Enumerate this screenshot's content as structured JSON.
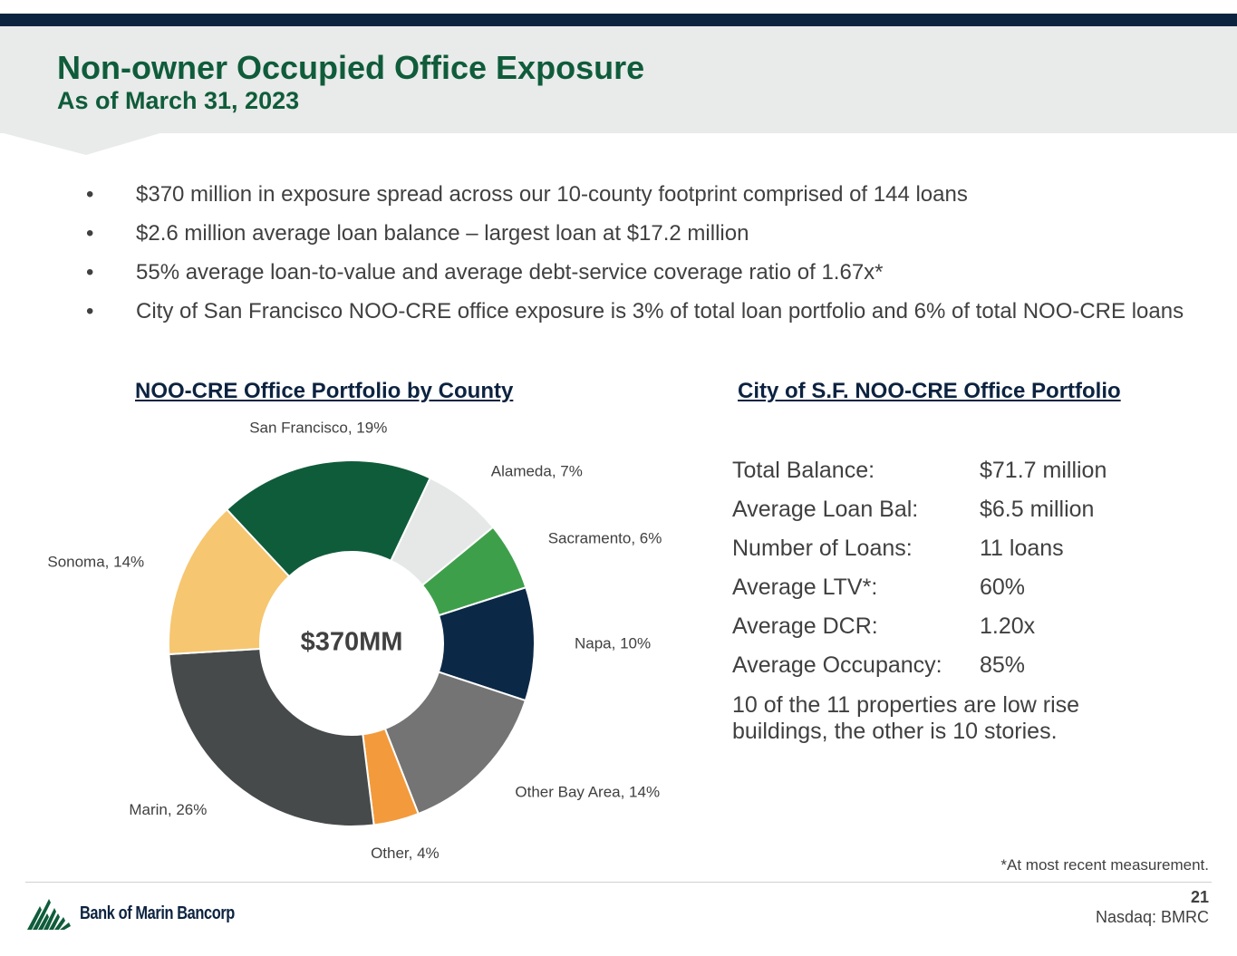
{
  "header": {
    "title": "Non-owner Occupied Office Exposure",
    "subtitle": "As of March 31, 2023"
  },
  "bullets": [
    "$370 million in exposure spread across our 10-county footprint comprised of 144 loans",
    "$2.6 million average loan balance – largest loan at $17.2 million",
    "55% average loan-to-value and average debt-service coverage ratio of 1.67x*",
    "City of San Francisco NOO-CRE office exposure is 3% of total loan portfolio and 6% of total NOO-CRE loans"
  ],
  "bullet_symbol": "•",
  "left_section": {
    "heading": "NOO-CRE Office Portfolio by County"
  },
  "right_section": {
    "heading": "City of S.F. NOO-CRE Office Portfolio",
    "stats": [
      {
        "label": "Total Balance:",
        "value": "$71.7 million"
      },
      {
        "label": "Average Loan Bal:",
        "value": "$6.5 million"
      },
      {
        "label": "Number of Loans:",
        "value": "11 loans"
      },
      {
        "label": "Average LTV*:",
        "value": "60%"
      },
      {
        "label": "Average DCR:",
        "value": "1.20x"
      },
      {
        "label": "Average Occupancy:",
        "value": "85%"
      }
    ],
    "note": "10 of the 11 properties are low rise buildings, the other is 10 stories."
  },
  "chart_data": {
    "type": "pie",
    "donut": true,
    "title": "NOO-CRE Office Portfolio by County",
    "center_label": "$370MM",
    "slices": [
      {
        "label": "San Francisco, 19%",
        "name": "San Francisco",
        "value": 19,
        "color": "#0f5c3a"
      },
      {
        "label": "Alameda, 7%",
        "name": "Alameda",
        "value": 7,
        "color": "#e6e8e7"
      },
      {
        "label": "Sacramento, 6%",
        "name": "Sacramento",
        "value": 6,
        "color": "#3e9f4b"
      },
      {
        "label": "Napa, 10%",
        "name": "Napa",
        "value": 10,
        "color": "#0c2847"
      },
      {
        "label": "Other Bay Area, 14%",
        "name": "Other Bay Area",
        "value": 14,
        "color": "#747474"
      },
      {
        "label": "Other, 4%",
        "name": "Other",
        "value": 4,
        "color": "#f39a3c"
      },
      {
        "label": "Marin, 26%",
        "name": "Marin",
        "value": 26,
        "color": "#464a4b"
      },
      {
        "label": "Sonoma, 14%",
        "name": "Sonoma",
        "value": 14,
        "color": "#f6c670"
      }
    ]
  },
  "footer": {
    "footnote": "*At most recent measurement.",
    "page_number": "21",
    "exchange": "Nasdaq: BMRC",
    "logo_text": "Bank of Marin Bancorp"
  },
  "colors": {
    "navy": "#0c2340",
    "green": "#0f5c3a",
    "band": "#e9eaea"
  }
}
